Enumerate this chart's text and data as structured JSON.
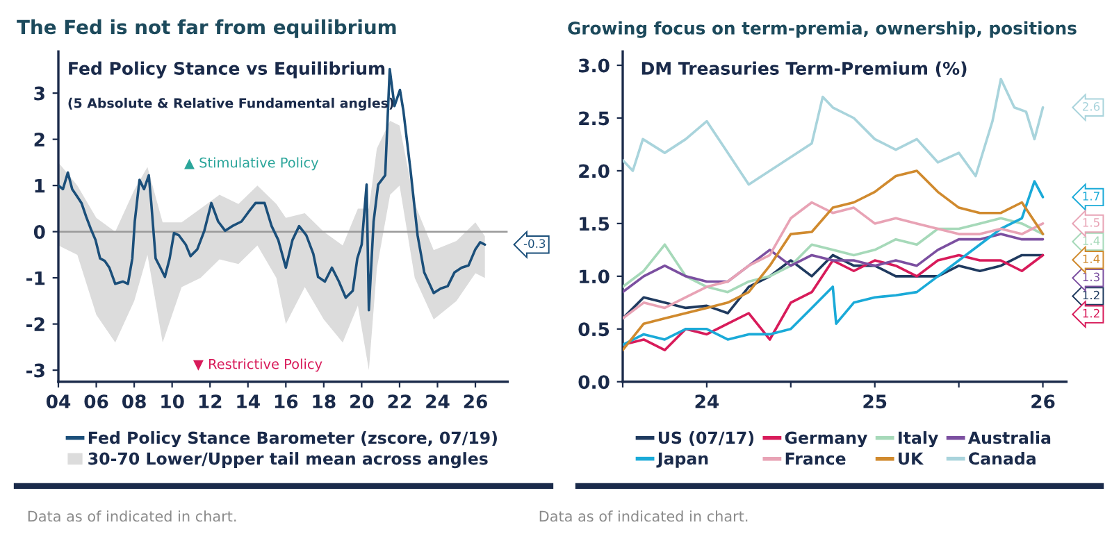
{
  "chart_data": [
    {
      "type": "line",
      "title": "The Fed is not far from equilibrium",
      "subtitle": "Fed Policy Stance vs Equilibrium",
      "xlim": [
        2004,
        2027.7
      ],
      "ylim": [
        -3.25,
        3.9
      ],
      "xticks": [
        {
          "value": 2004,
          "label": "04"
        },
        {
          "value": 2006,
          "label": "06"
        },
        {
          "value": 2008,
          "label": "08"
        },
        {
          "value": 2010,
          "label": "10"
        },
        {
          "value": 2012,
          "label": "12"
        },
        {
          "value": 2014,
          "label": "14"
        },
        {
          "value": 2016,
          "label": "16"
        },
        {
          "value": 2018,
          "label": "18"
        },
        {
          "value": 2020,
          "label": "20"
        },
        {
          "value": 2022,
          "label": "22"
        },
        {
          "value": 2024,
          "label": "24"
        },
        {
          "value": 2026,
          "label": "26"
        }
      ],
      "yticks": [
        -3,
        -2,
        -1,
        0,
        1,
        2,
        3
      ],
      "grid": false,
      "legend": "bottom",
      "ref_lines": [
        {
          "axis": "y",
          "value": 0,
          "color": "#9a9a9a"
        }
      ],
      "series": [
        {
          "name": "Fed Policy Stance Barometer (zscore, 07/19)",
          "type": "line",
          "color": "#1b4f7a",
          "x": [
            2004.0,
            2004.24,
            2004.5,
            2004.73,
            2004.98,
            2005.22,
            2005.47,
            2005.7,
            2005.96,
            2006.2,
            2006.44,
            2006.69,
            2007.0,
            2007.4,
            2007.67,
            2007.9,
            2008.03,
            2008.28,
            2008.52,
            2008.77,
            2008.9,
            2009.13,
            2009.38,
            2009.62,
            2009.87,
            2010.1,
            2010.36,
            2010.72,
            2010.97,
            2011.33,
            2011.7,
            2012.07,
            2012.43,
            2012.8,
            2013.17,
            2013.66,
            2014.02,
            2014.4,
            2014.88,
            2015.25,
            2015.6,
            2016.0,
            2016.35,
            2016.7,
            2017.08,
            2017.45,
            2017.7,
            2018.06,
            2018.43,
            2018.8,
            2019.16,
            2019.53,
            2019.77,
            2020.0,
            2020.26,
            2020.38,
            2020.63,
            2020.87,
            2021.24,
            2021.48,
            2021.73,
            2022.02,
            2022.2,
            2022.58,
            2022.95,
            2023.3,
            2023.8,
            2024.17,
            2024.54,
            2024.9,
            2025.27,
            2025.64,
            2026.0,
            2026.25,
            2026.5
          ],
          "values": [
            1.0,
            0.92,
            1.28,
            0.92,
            0.77,
            0.62,
            0.32,
            0.07,
            -0.18,
            -0.58,
            -0.63,
            -0.78,
            -1.13,
            -1.08,
            -1.13,
            -0.58,
            0.22,
            1.12,
            0.92,
            1.22,
            0.62,
            -0.58,
            -0.78,
            -0.98,
            -0.58,
            -0.03,
            -0.08,
            -0.28,
            -0.53,
            -0.38,
            0.02,
            0.62,
            0.22,
            0.02,
            0.12,
            0.22,
            0.42,
            0.62,
            0.62,
            0.12,
            -0.18,
            -0.78,
            -0.18,
            0.12,
            -0.08,
            -0.48,
            -0.98,
            -1.08,
            -0.78,
            -1.08,
            -1.43,
            -1.28,
            -0.58,
            -0.28,
            1.02,
            -1.7,
            0.22,
            1.02,
            1.22,
            3.52,
            2.72,
            3.07,
            2.62,
            1.32,
            -0.08,
            -0.88,
            -1.33,
            -1.23,
            -1.18,
            -0.88,
            -0.78,
            -0.73,
            -0.38,
            -0.23,
            -0.28
          ]
        },
        {
          "name": "30-70 Lower/Upper tail mean across angles",
          "type": "area",
          "color": "#dcdcdc",
          "x": [
            2004,
            2005,
            2006,
            2007,
            2008,
            2008.7,
            2009.5,
            2010.5,
            2011.5,
            2012.5,
            2013.5,
            2014.5,
            2015.5,
            2016,
            2017,
            2018,
            2019,
            2019.8,
            2020.38,
            2020.8,
            2021.5,
            2022,
            2022.8,
            2023.8,
            2025,
            2026,
            2026.5
          ],
          "values": [
            null,
            null,
            null,
            null,
            null,
            null,
            null,
            null,
            null,
            null,
            null,
            null,
            null,
            null,
            null,
            null,
            null,
            null,
            null,
            null,
            null,
            null,
            null,
            null,
            null,
            null,
            null
          ],
          "upper": [
            1.5,
            1.0,
            0.3,
            0.0,
            0.9,
            1.4,
            0.2,
            0.2,
            0.5,
            0.8,
            0.6,
            1.0,
            0.6,
            0.3,
            0.4,
            0.0,
            -0.3,
            0.5,
            0.5,
            1.8,
            2.4,
            2.3,
            0.6,
            -0.4,
            -0.2,
            0.2,
            -0.1
          ],
          "lower": [
            -0.3,
            -0.5,
            -1.8,
            -2.4,
            -1.5,
            -0.5,
            -2.4,
            -1.2,
            -1.0,
            -0.6,
            -0.7,
            -0.3,
            -1.0,
            -2.0,
            -1.2,
            -1.9,
            -2.4,
            -1.6,
            -3.0,
            -0.8,
            0.8,
            1.0,
            -1.0,
            -1.9,
            -1.5,
            -0.9,
            -1.0
          ]
        }
      ],
      "annotations": [
        "-0.3",
        "(5 Absolute & Relative Fundamental angles)",
        "▲ Stimulative Policy",
        "▼ Restrictive Policy",
        "Data as of indicated in chart."
      ]
    },
    {
      "type": "line",
      "title": "Growing focus on term-premia, ownership, positions",
      "subtitle": "DM Treasuries Term-Premium (%)",
      "xlim": [
        2023.5,
        2026.14
      ],
      "ylim": [
        0,
        3.13
      ],
      "xticks": [
        {
          "value": 2023.5,
          "label": null
        },
        {
          "value": 2024,
          "label": "24"
        },
        {
          "value": 2024.5,
          "label": null
        },
        {
          "value": 2025,
          "label": "25"
        },
        {
          "value": 2025.5,
          "label": null
        },
        {
          "value": 2026,
          "label": "26"
        }
      ],
      "yticks": [
        {
          "value": 0,
          "label": "0.0"
        },
        0.5,
        {
          "value": 1,
          "label": "1.0"
        },
        1.5,
        {
          "value": 2,
          "label": "2.0"
        },
        2.5,
        {
          "value": 3,
          "label": "3.0"
        }
      ],
      "grid": false,
      "legend": "bottom",
      "series": [
        {
          "name": "US (07/17)",
          "color": "#1f3a5f",
          "x": [
            2023.5,
            2023.625,
            2023.75,
            2023.875,
            2024.0,
            2024.125,
            2024.25,
            2024.375,
            2024.5,
            2024.625,
            2024.75,
            2024.875,
            2025.0,
            2025.125,
            2025.25,
            2025.375,
            2025.5,
            2025.625,
            2025.75,
            2025.875,
            2026.0
          ],
          "values": [
            0.6,
            0.8,
            0.75,
            0.7,
            0.72,
            0.65,
            0.9,
            1.0,
            1.15,
            1.0,
            1.2,
            1.1,
            1.1,
            1.0,
            1.0,
            1.0,
            1.1,
            1.05,
            1.1,
            1.2,
            1.2
          ]
        },
        {
          "name": "Germany",
          "color": "#d81b5a",
          "x": [
            2023.5,
            2023.625,
            2023.75,
            2023.875,
            2024.0,
            2024.125,
            2024.25,
            2024.375,
            2024.5,
            2024.625,
            2024.75,
            2024.875,
            2025.0,
            2025.125,
            2025.25,
            2025.375,
            2025.5,
            2025.625,
            2025.75,
            2025.875,
            2026.0
          ],
          "values": [
            0.35,
            0.4,
            0.3,
            0.5,
            0.45,
            0.55,
            0.65,
            0.4,
            0.75,
            0.85,
            1.15,
            1.05,
            1.15,
            1.1,
            1.0,
            1.15,
            1.2,
            1.15,
            1.15,
            1.05,
            1.2
          ]
        },
        {
          "name": "Italy",
          "color": "#a6d9b9",
          "x": [
            2023.5,
            2023.625,
            2023.75,
            2023.875,
            2024.0,
            2024.125,
            2024.25,
            2024.375,
            2024.5,
            2024.625,
            2024.75,
            2024.875,
            2025.0,
            2025.125,
            2025.25,
            2025.375,
            2025.5,
            2025.625,
            2025.75,
            2025.875,
            2026.0
          ],
          "values": [
            0.9,
            1.05,
            1.3,
            1.0,
            0.9,
            0.85,
            0.95,
            1.0,
            1.1,
            1.3,
            1.25,
            1.2,
            1.25,
            1.35,
            1.3,
            1.45,
            1.45,
            1.5,
            1.55,
            1.5,
            1.4
          ]
        },
        {
          "name": "Australia",
          "color": "#7b4fa0",
          "x": [
            2023.5,
            2023.625,
            2023.75,
            2023.875,
            2024.0,
            2024.125,
            2024.25,
            2024.375,
            2024.5,
            2024.625,
            2024.75,
            2024.875,
            2025.0,
            2025.125,
            2025.25,
            2025.375,
            2025.5,
            2025.625,
            2025.75,
            2025.875,
            2026.0
          ],
          "values": [
            0.85,
            1.0,
            1.1,
            1.0,
            0.95,
            0.95,
            1.1,
            1.25,
            1.1,
            1.2,
            1.15,
            1.15,
            1.1,
            1.15,
            1.1,
            1.25,
            1.35,
            1.35,
            1.4,
            1.35,
            1.35
          ]
        },
        {
          "name": "Japan",
          "color": "#1aaad8",
          "x": [
            2023.5,
            2023.625,
            2023.75,
            2023.875,
            2024.0,
            2024.125,
            2024.25,
            2024.375,
            2024.5,
            2024.625,
            2024.75,
            2024.77,
            2024.875,
            2025.0,
            2025.125,
            2025.25,
            2025.375,
            2025.5,
            2025.625,
            2025.75,
            2025.875,
            2025.95,
            2026.0
          ],
          "values": [
            0.35,
            0.45,
            0.4,
            0.5,
            0.5,
            0.4,
            0.45,
            0.45,
            0.5,
            0.7,
            0.9,
            0.55,
            0.75,
            0.8,
            0.82,
            0.85,
            1.0,
            1.15,
            1.3,
            1.45,
            1.55,
            1.9,
            1.75
          ]
        },
        {
          "name": "France",
          "color": "#e8a3b5",
          "x": [
            2023.5,
            2023.625,
            2023.75,
            2023.875,
            2024.0,
            2024.125,
            2024.25,
            2024.375,
            2024.5,
            2024.625,
            2024.75,
            2024.875,
            2025.0,
            2025.125,
            2025.25,
            2025.375,
            2025.5,
            2025.625,
            2025.75,
            2025.875,
            2026.0
          ],
          "values": [
            0.6,
            0.75,
            0.7,
            0.8,
            0.9,
            0.95,
            1.1,
            1.2,
            1.55,
            1.7,
            1.6,
            1.65,
            1.5,
            1.55,
            1.5,
            1.45,
            1.4,
            1.4,
            1.45,
            1.4,
            1.5
          ]
        },
        {
          "name": "UK",
          "color": "#d08a2e",
          "x": [
            2023.5,
            2023.625,
            2023.75,
            2023.875,
            2024.0,
            2024.125,
            2024.25,
            2024.375,
            2024.5,
            2024.625,
            2024.75,
            2024.875,
            2025.0,
            2025.125,
            2025.25,
            2025.375,
            2025.5,
            2025.625,
            2025.75,
            2025.875,
            2026.0
          ],
          "values": [
            0.3,
            0.55,
            0.6,
            0.65,
            0.7,
            0.75,
            0.85,
            1.1,
            1.4,
            1.42,
            1.65,
            1.7,
            1.8,
            1.95,
            2.0,
            1.8,
            1.65,
            1.6,
            1.6,
            1.7,
            1.4
          ]
        },
        {
          "name": "Canada",
          "color": "#a9d4dc",
          "x": [
            2023.5,
            2023.56,
            2023.62,
            2023.75,
            2023.875,
            2024.0,
            2024.125,
            2024.25,
            2024.375,
            2024.5,
            2024.625,
            2024.69,
            2024.75,
            2024.875,
            2025.0,
            2025.125,
            2025.25,
            2025.375,
            2025.5,
            2025.6,
            2025.7,
            2025.75,
            2025.83,
            2025.9,
            2025.95,
            2026.0
          ],
          "values": [
            2.1,
            2.0,
            2.3,
            2.17,
            2.3,
            2.47,
            2.17,
            1.87,
            2.0,
            2.13,
            2.26,
            2.7,
            2.6,
            2.5,
            2.3,
            2.2,
            2.3,
            2.08,
            2.17,
            1.95,
            2.47,
            2.87,
            2.6,
            2.56,
            2.3,
            2.6
          ]
        }
      ],
      "annotations": [
        "1.2",
        "1.2",
        "1.4",
        "1.3",
        "1.7",
        "1.5",
        "1.4",
        "2.6",
        "Data as of indicated in chart."
      ]
    }
  ]
}
